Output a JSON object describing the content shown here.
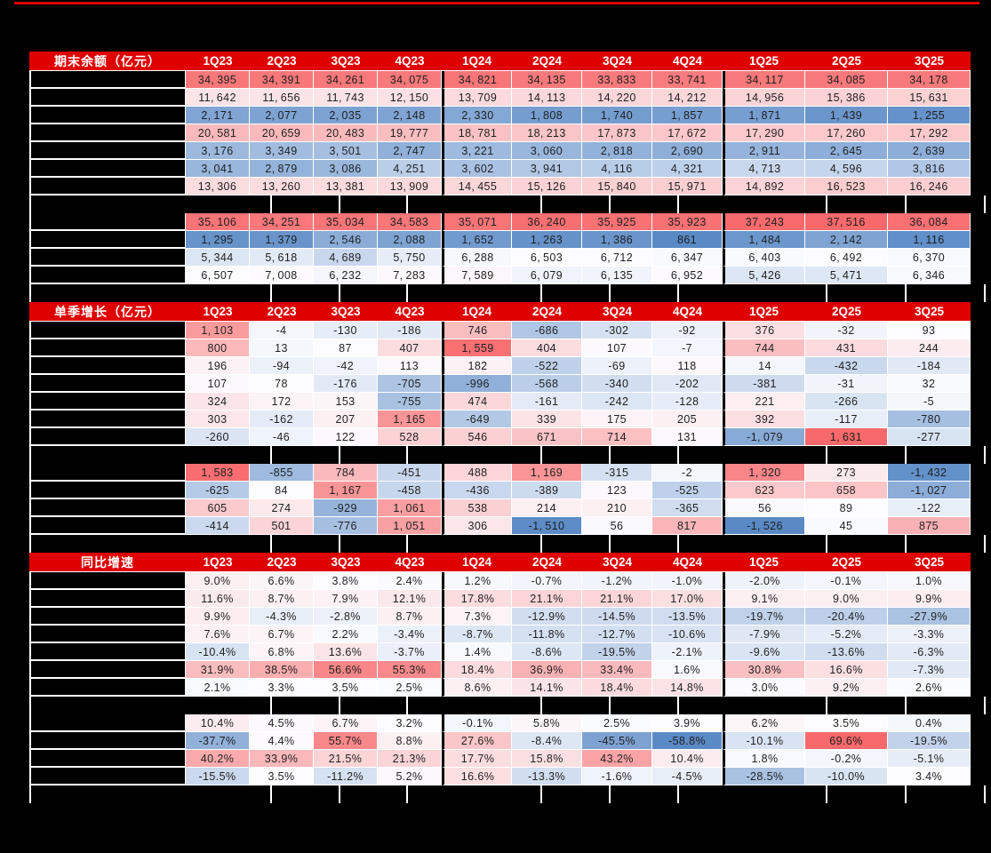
{
  "colors": {
    "page_bg": "#000000",
    "top_rule": "#e30000",
    "header_bg": "#df0000",
    "header_text": "#ffffff",
    "cell_text": "#1f1f1f",
    "grid_line": "#ffffff",
    "scale_high": "#f8696b",
    "scale_mid": "#fcfcff",
    "scale_low": "#5a8ac6"
  },
  "columns": [
    "1Q23",
    "2Q23",
    "3Q23",
    "4Q23",
    "1Q24",
    "2Q24",
    "3Q24",
    "4Q24",
    "1Q25",
    "2Q25",
    "3Q25"
  ],
  "labels_redacted": true,
  "sections": [
    {
      "title": "期末余额（亿元）",
      "format": "int",
      "groups": [
        [
          [
            34395,
            34391,
            34261,
            34075,
            34821,
            34135,
            33833,
            33741,
            34117,
            34085,
            34178
          ],
          [
            11642,
            11656,
            11743,
            12150,
            13709,
            14113,
            14220,
            14212,
            14956,
            15386,
            15631
          ],
          [
            2171,
            2077,
            2035,
            2148,
            2330,
            1808,
            1740,
            1857,
            1871,
            1439,
            1255
          ],
          [
            20581,
            20659,
            20483,
            19777,
            18781,
            18213,
            17873,
            17672,
            17290,
            17260,
            17292
          ],
          [
            3176,
            3349,
            3501,
            2747,
            3221,
            3060,
            2818,
            2690,
            2911,
            2645,
            2639
          ],
          [
            3041,
            2879,
            3086,
            4251,
            3602,
            3941,
            4116,
            4321,
            4713,
            4596,
            3816
          ],
          [
            13306,
            13260,
            13381,
            13909,
            14455,
            15126,
            15840,
            15971,
            14892,
            16523,
            16246
          ]
        ],
        [
          [
            35106,
            34251,
            35034,
            34583,
            35071,
            36240,
            35925,
            35923,
            37243,
            37516,
            36084
          ],
          [
            1295,
            1379,
            2546,
            2088,
            1652,
            1263,
            1386,
            861,
            1484,
            2142,
            1116
          ],
          [
            5344,
            5618,
            4689,
            5750,
            6288,
            6503,
            6712,
            6347,
            6403,
            6492,
            6370
          ],
          [
            6507,
            7008,
            6232,
            7283,
            7589,
            6079,
            6135,
            6952,
            5426,
            5471,
            6346
          ]
        ]
      ]
    },
    {
      "title": "单季增长（亿元）",
      "format": "int",
      "groups": [
        [
          [
            1103,
            -4,
            -130,
            -186,
            746,
            -686,
            -302,
            -92,
            376,
            -32,
            93
          ],
          [
            800,
            13,
            87,
            407,
            1559,
            404,
            107,
            -7,
            744,
            431,
            244
          ],
          [
            196,
            -94,
            -42,
            113,
            182,
            -522,
            -69,
            118,
            14,
            -432,
            -184
          ],
          [
            107,
            78,
            -176,
            -705,
            -996,
            -568,
            -340,
            -202,
            -381,
            -31,
            32
          ],
          [
            324,
            172,
            153,
            -755,
            474,
            -161,
            -242,
            -128,
            221,
            -266,
            -5
          ],
          [
            303,
            -162,
            207,
            1165,
            -649,
            339,
            175,
            205,
            392,
            -117,
            -780
          ],
          [
            -260,
            -46,
            122,
            528,
            546,
            671,
            714,
            131,
            -1079,
            1631,
            -277
          ]
        ],
        [
          [
            1583,
            -855,
            784,
            -451,
            488,
            1169,
            -315,
            -2,
            1320,
            273,
            -1432
          ],
          [
            -625,
            84,
            1167,
            -458,
            -436,
            -389,
            123,
            -525,
            623,
            658,
            -1027
          ],
          [
            605,
            274,
            -929,
            1061,
            538,
            214,
            210,
            -365,
            56,
            89,
            -122
          ],
          [
            -414,
            501,
            -776,
            1051,
            306,
            -1510,
            56,
            817,
            -1526,
            45,
            875
          ]
        ]
      ]
    },
    {
      "title": "同比增速",
      "format": "pct",
      "groups": [
        [
          [
            9.0,
            6.6,
            3.8,
            2.4,
            1.2,
            -0.7,
            -1.2,
            -1.0,
            -2.0,
            -0.1,
            1.0
          ],
          [
            11.6,
            8.7,
            7.9,
            12.1,
            17.8,
            21.1,
            21.1,
            17.0,
            9.1,
            9.0,
            9.9
          ],
          [
            9.9,
            -4.3,
            -2.8,
            8.7,
            7.3,
            -12.9,
            -14.5,
            -13.5,
            -19.7,
            -20.4,
            -27.9
          ],
          [
            7.6,
            6.7,
            2.2,
            -3.4,
            -8.7,
            -11.8,
            -12.7,
            -10.6,
            -7.9,
            -5.2,
            -3.3
          ],
          [
            -10.4,
            6.8,
            13.6,
            -3.7,
            1.4,
            -8.6,
            -19.5,
            -2.1,
            -9.6,
            -13.6,
            -6.3
          ],
          [
            31.9,
            38.5,
            56.6,
            55.3,
            18.4,
            36.9,
            33.4,
            1.6,
            30.8,
            16.6,
            -7.3
          ],
          [
            2.1,
            3.3,
            3.5,
            2.5,
            8.6,
            14.1,
            18.4,
            14.8,
            3.0,
            9.2,
            2.6
          ]
        ],
        [
          [
            10.4,
            4.5,
            6.7,
            3.2,
            -0.1,
            5.8,
            2.5,
            3.9,
            6.2,
            3.5,
            0.4
          ],
          [
            -37.7,
            4.4,
            55.7,
            8.8,
            27.6,
            -8.4,
            -45.5,
            -58.8,
            -10.1,
            69.6,
            -19.5
          ],
          [
            40.2,
            33.9,
            21.5,
            21.3,
            17.7,
            15.8,
            43.2,
            10.4,
            1.8,
            -0.2,
            -5.1
          ],
          [
            -15.5,
            3.5,
            -11.2,
            5.2,
            16.6,
            -13.3,
            -1.6,
            -4.5,
            -28.5,
            -10.0,
            3.4
          ]
        ]
      ]
    }
  ]
}
